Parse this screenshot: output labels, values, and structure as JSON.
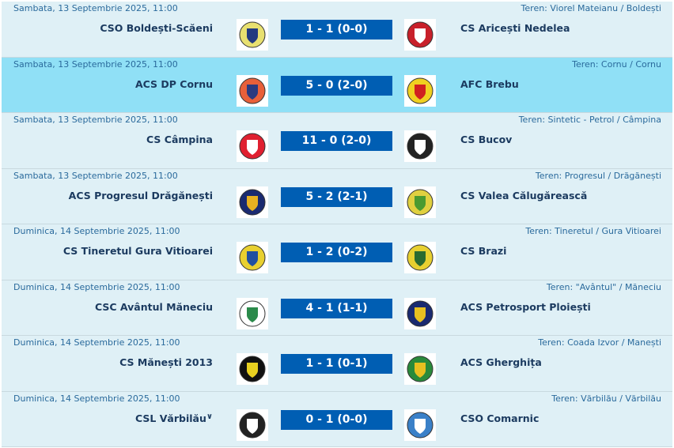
{
  "matches": [
    {
      "date": "Sambata, 13 Septembrie 2025, 11:00",
      "venue": "Teren: Viorel Mateianu / Boldești",
      "home": "CSO Boldești-Scăeni",
      "away": "CS Aricești Nedelea",
      "score": "1 - 1 (0-0)",
      "home_colors": [
        "#e8e070",
        "#223a80"
      ],
      "away_colors": [
        "#c8202a",
        "#ffffff"
      ],
      "highlight": false
    },
    {
      "date": "Sambata, 13 Septembrie 2025, 11:00",
      "venue": "Teren: Cornu / Cornu",
      "home": "ACS DP Cornu",
      "away": "AFC Brebu",
      "score": "5 - 0 (2-0)",
      "home_colors": [
        "#e8603a",
        "#2a3a80"
      ],
      "away_colors": [
        "#f0d020",
        "#d02020"
      ],
      "highlight": true
    },
    {
      "date": "Sambata, 13 Septembrie 2025, 11:00",
      "venue": "Teren: Sintetic - Petrol / Câmpina",
      "home": "CS Câmpina",
      "away": "CS Bucov",
      "score": "11 - 0 (2-0)",
      "home_colors": [
        "#e02030",
        "#ffffff"
      ],
      "away_colors": [
        "#222222",
        "#ffffff"
      ],
      "highlight": false
    },
    {
      "date": "Sambata, 13 Septembrie 2025, 11:00",
      "venue": "Teren: Progresul / Drăgănești",
      "home": "ACS Progresul Drăgănești",
      "away": "CS Valea Călugărească",
      "score": "5 - 2 (2-1)",
      "home_colors": [
        "#1a2a70",
        "#e8b020"
      ],
      "away_colors": [
        "#e0d040",
        "#4a9a30"
      ],
      "highlight": false
    },
    {
      "date": "Duminica, 14 Septembrie 2025, 11:00",
      "venue": "Teren: Tineretul / Gura Vitioarei",
      "home": "CS Tineretul Gura Vitioarei",
      "away": "CS Brazi",
      "score": "1 - 2 (0-2)",
      "home_colors": [
        "#e8d030",
        "#2050a0"
      ],
      "away_colors": [
        "#e8d030",
        "#2a6a30"
      ],
      "highlight": false
    },
    {
      "date": "Duminica, 14 Septembrie 2025, 11:00",
      "venue": "Teren: \"Avântul\" / Măneciu",
      "home": "CSC Avântul Măneciu",
      "away": "ACS Petrosport Ploiești",
      "score": "4 - 1 (1-1)",
      "home_colors": [
        "#ffffff",
        "#2a8a4a"
      ],
      "away_colors": [
        "#1a2a70",
        "#e8c020"
      ],
      "highlight": false
    },
    {
      "date": "Duminica, 14 Septembrie 2025, 11:00",
      "venue": "Teren: Coada Izvor / Manești",
      "home": "CS Mănești 2013",
      "away": "ACS Gherghița",
      "score": "1 - 1 (0-1)",
      "home_colors": [
        "#111111",
        "#e8d020"
      ],
      "away_colors": [
        "#2a8a3a",
        "#e8c020"
      ],
      "highlight": false
    },
    {
      "date": "Duminica, 14 Septembrie 2025, 11:00",
      "venue": "Teren: Vărbilău / Vărbilău",
      "home": "CSL Vărbilău",
      "away": "CSO Comarnic",
      "score": "0 - 1 (0-0)",
      "home_colors": [
        "#222222",
        "#ffffff"
      ],
      "away_colors": [
        "#3a80c8",
        "#ffffff"
      ],
      "highlight": false,
      "home_has_dropdown": true
    }
  ]
}
